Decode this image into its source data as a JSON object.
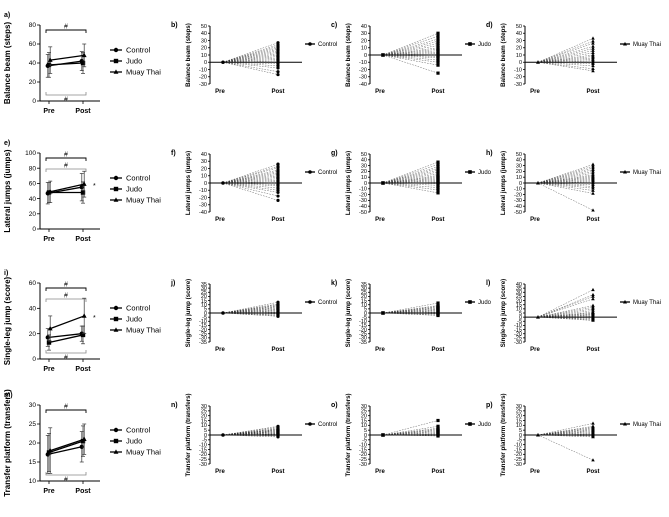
{
  "chart_data": {
    "type": "line",
    "x_categories": [
      "Pre",
      "Post"
    ],
    "rows": [
      {
        "ylabel": "Balance beam (steps)",
        "summary": {
          "label": "a)",
          "ylim": [
            0,
            80
          ],
          "yticks": [
            0,
            20,
            40,
            60,
            80
          ],
          "series": [
            {
              "name": "Control",
              "values": [
                37,
                42
              ],
              "err": [
                12,
                10
              ],
              "marker": "circle"
            },
            {
              "name": "Judo",
              "values": [
                38,
                40
              ],
              "err": [
                13,
                11
              ],
              "marker": "square"
            },
            {
              "name": "Muay Thai",
              "values": [
                43,
                48
              ],
              "err": [
                14,
                12
              ],
              "marker": "triangle"
            }
          ],
          "annotations": [
            {
              "text": "#",
              "position": "above"
            },
            {
              "text": "#",
              "position": "below"
            }
          ]
        },
        "panels": [
          {
            "label": "b)",
            "legend": "Control",
            "marker": "circle",
            "yticks": [
              -30,
              -20,
              -10,
              0,
              10,
              20,
              30,
              40,
              50
            ],
            "ylim": [
              -30,
              50
            ],
            "post_values": [
              27,
              24,
              22,
              20,
              18,
              16,
              14,
              12,
              10,
              8,
              6,
              4,
              2,
              0,
              -2,
              -5,
              -8,
              -13,
              -17
            ]
          },
          {
            "label": "c)",
            "legend": "Judo",
            "marker": "square",
            "yticks": [
              -40,
              -30,
              -20,
              -10,
              0,
              10,
              20,
              30,
              40
            ],
            "ylim": [
              -40,
              40
            ],
            "post_values": [
              30,
              26,
              22,
              19,
              16,
              13,
              10,
              8,
              6,
              4,
              2,
              0,
              -2,
              -4,
              -7,
              -10,
              -14,
              -25
            ]
          },
          {
            "label": "d)",
            "legend": "Muay Thai",
            "marker": "triangle",
            "yticks": [
              -30,
              -20,
              -10,
              0,
              10,
              20,
              30,
              40,
              50
            ],
            "ylim": [
              -30,
              50
            ],
            "post_values": [
              33,
              29,
              26,
              22,
              19,
              16,
              13,
              10,
              8,
              6,
              4,
              2,
              0,
              -2,
              -5,
              -9,
              -12
            ]
          }
        ]
      },
      {
        "ylabel": "Lateral jumps (jumps)",
        "summary": {
          "label": "e)",
          "ylim": [
            0,
            100
          ],
          "yticks": [
            0,
            20,
            40,
            60,
            80,
            100
          ],
          "series": [
            {
              "name": "Control",
              "values": [
                47,
                55
              ],
              "err": [
                14,
                18
              ],
              "marker": "circle"
            },
            {
              "name": "Judo",
              "values": [
                48,
                48
              ],
              "err": [
                13,
                14
              ],
              "marker": "square"
            },
            {
              "name": "Muay Thai",
              "values": [
                49,
                59
              ],
              "err": [
                14,
                17
              ],
              "marker": "triangle"
            }
          ],
          "annotations": [
            {
              "text": "#",
              "position": "above"
            },
            {
              "text": "#",
              "position": "above-inner"
            },
            {
              "text": "*",
              "position": "right"
            }
          ]
        },
        "panels": [
          {
            "label": "f)",
            "legend": "Control",
            "marker": "circle",
            "yticks": [
              -40,
              -30,
              -20,
              -10,
              0,
              10,
              20,
              30,
              40
            ],
            "ylim": [
              -40,
              40
            ],
            "post_values": [
              26,
              23,
              21,
              18,
              16,
              14,
              12,
              10,
              8,
              6,
              4,
              2,
              0,
              -2,
              -4,
              -7,
              -10,
              -13,
              -18,
              -24
            ]
          },
          {
            "label": "g)",
            "legend": "Judo",
            "marker": "square",
            "yticks": [
              -50,
              -40,
              -30,
              -20,
              -10,
              0,
              10,
              20,
              30,
              40,
              50
            ],
            "ylim": [
              -50,
              50
            ],
            "post_values": [
              36,
              32,
              28,
              25,
              22,
              19,
              16,
              13,
              11,
              9,
              7,
              5,
              3,
              1,
              -1,
              -4,
              -8,
              -12,
              -17
            ]
          },
          {
            "label": "h)",
            "legend": "Muay Thai",
            "marker": "triangle",
            "yticks": [
              -50,
              -40,
              -30,
              -20,
              -10,
              0,
              10,
              20,
              30,
              40,
              50
            ],
            "ylim": [
              -50,
              50
            ],
            "post_values": [
              32,
              29,
              26,
              23,
              20,
              17,
              14,
              12,
              10,
              8,
              6,
              4,
              2,
              0,
              -3,
              -6,
              -9,
              -13,
              -18,
              -47
            ]
          }
        ]
      },
      {
        "ylabel": "Single-leg jump (score)",
        "summary": {
          "label": "i)",
          "ylim": [
            0,
            60
          ],
          "yticks": [
            0,
            20,
            40,
            60
          ],
          "series": [
            {
              "name": "Control",
              "values": [
                17,
                20
              ],
              "err": [
                7,
                6
              ],
              "marker": "circle"
            },
            {
              "name": "Judo",
              "values": [
                13,
                19
              ],
              "err": [
                6,
                7
              ],
              "marker": "square"
            },
            {
              "name": "Muay Thai",
              "values": [
                24,
                34
              ],
              "err": [
                10,
                14
              ],
              "marker": "triangle"
            }
          ],
          "annotations": [
            {
              "text": "#",
              "position": "above"
            },
            {
              "text": "#",
              "position": "above-inner"
            },
            {
              "text": "*",
              "position": "right"
            },
            {
              "text": "#",
              "position": "below"
            }
          ]
        },
        "panels": [
          {
            "label": "j)",
            "legend": "Control",
            "marker": "circle",
            "yticks": [
              -35,
              -30,
              -25,
              -20,
              -15,
              -10,
              -5,
              0,
              5,
              10,
              15,
              20,
              25,
              30,
              35
            ],
            "ylim": [
              -35,
              35
            ],
            "post_values": [
              13,
              11,
              10,
              9,
              8,
              7,
              6,
              5,
              4,
              3,
              2,
              1,
              0,
              -1,
              -2,
              -3,
              -4
            ]
          },
          {
            "label": "k)",
            "legend": "Judo",
            "marker": "square",
            "yticks": [
              -35,
              -30,
              -25,
              -20,
              -15,
              -10,
              -5,
              0,
              5,
              10,
              15,
              20,
              25,
              30,
              35
            ],
            "ylim": [
              -35,
              35
            ],
            "post_values": [
              12,
              9,
              8,
              7,
              6,
              5,
              4,
              3,
              2,
              1,
              0,
              -1,
              -2,
              -3
            ]
          },
          {
            "label": "l)",
            "legend": "Muay Thai",
            "marker": "triangle",
            "yticks": [
              -30,
              -25,
              -20,
              -15,
              -10,
              -5,
              0,
              5,
              10,
              15,
              20,
              25,
              30,
              35,
              40
            ],
            "ylim": [
              -30,
              40
            ],
            "post_values": [
              33,
              27,
              25,
              22,
              14,
              12,
              10,
              8,
              6,
              5,
              4,
              3,
              2,
              1,
              0,
              -1,
              -2,
              -3,
              -4
            ]
          }
        ]
      },
      {
        "ylabel": "Transfer platform (transfers)",
        "summary": {
          "label": "m)",
          "ylim": [
            10,
            30
          ],
          "yticks": [
            10,
            15,
            20,
            25,
            30
          ],
          "series": [
            {
              "name": "Control",
              "values": [
                17,
                19
              ],
              "err": [
                5,
                4
              ],
              "marker": "circle"
            },
            {
              "name": "Judo",
              "values": [
                17.5,
                20.5
              ],
              "err": [
                5,
                4
              ],
              "marker": "square"
            },
            {
              "name": "Muay Thai",
              "values": [
                18,
                21
              ],
              "err": [
                6,
                4
              ],
              "marker": "triangle"
            }
          ],
          "annotations": [
            {
              "text": "#",
              "position": "above"
            },
            {
              "text": "#",
              "position": "below"
            }
          ]
        },
        "panels": [
          {
            "label": "n)",
            "legend": "Control",
            "marker": "circle",
            "yticks": [
              -30,
              -25,
              -20,
              -15,
              -10,
              -5,
              0,
              5,
              10,
              15,
              20,
              25,
              30
            ],
            "ylim": [
              -30,
              30
            ],
            "post_values": [
              9,
              8,
              7,
              6,
              6,
              5,
              5,
              4,
              4,
              3,
              3,
              2,
              2,
              1,
              1,
              0,
              -1,
              -2
            ]
          },
          {
            "label": "o)",
            "legend": "Judo",
            "marker": "square",
            "yticks": [
              -30,
              -25,
              -20,
              -15,
              -10,
              -5,
              0,
              5,
              10,
              15,
              20,
              25,
              30
            ],
            "ylim": [
              -30,
              30
            ],
            "post_values": [
              15,
              9,
              7,
              6,
              5,
              4,
              3,
              2,
              1,
              0,
              -1
            ]
          },
          {
            "label": "p)",
            "legend": "Muay Thai",
            "marker": "triangle",
            "yticks": [
              -30,
              -25,
              -20,
              -15,
              -10,
              -5,
              0,
              5,
              10,
              15,
              20,
              25,
              30
            ],
            "ylim": [
              -30,
              30
            ],
            "post_values": [
              12,
              9,
              8,
              7,
              6,
              5,
              4,
              3,
              2,
              1,
              0,
              -1,
              -2,
              -26
            ]
          }
        ]
      }
    ]
  }
}
